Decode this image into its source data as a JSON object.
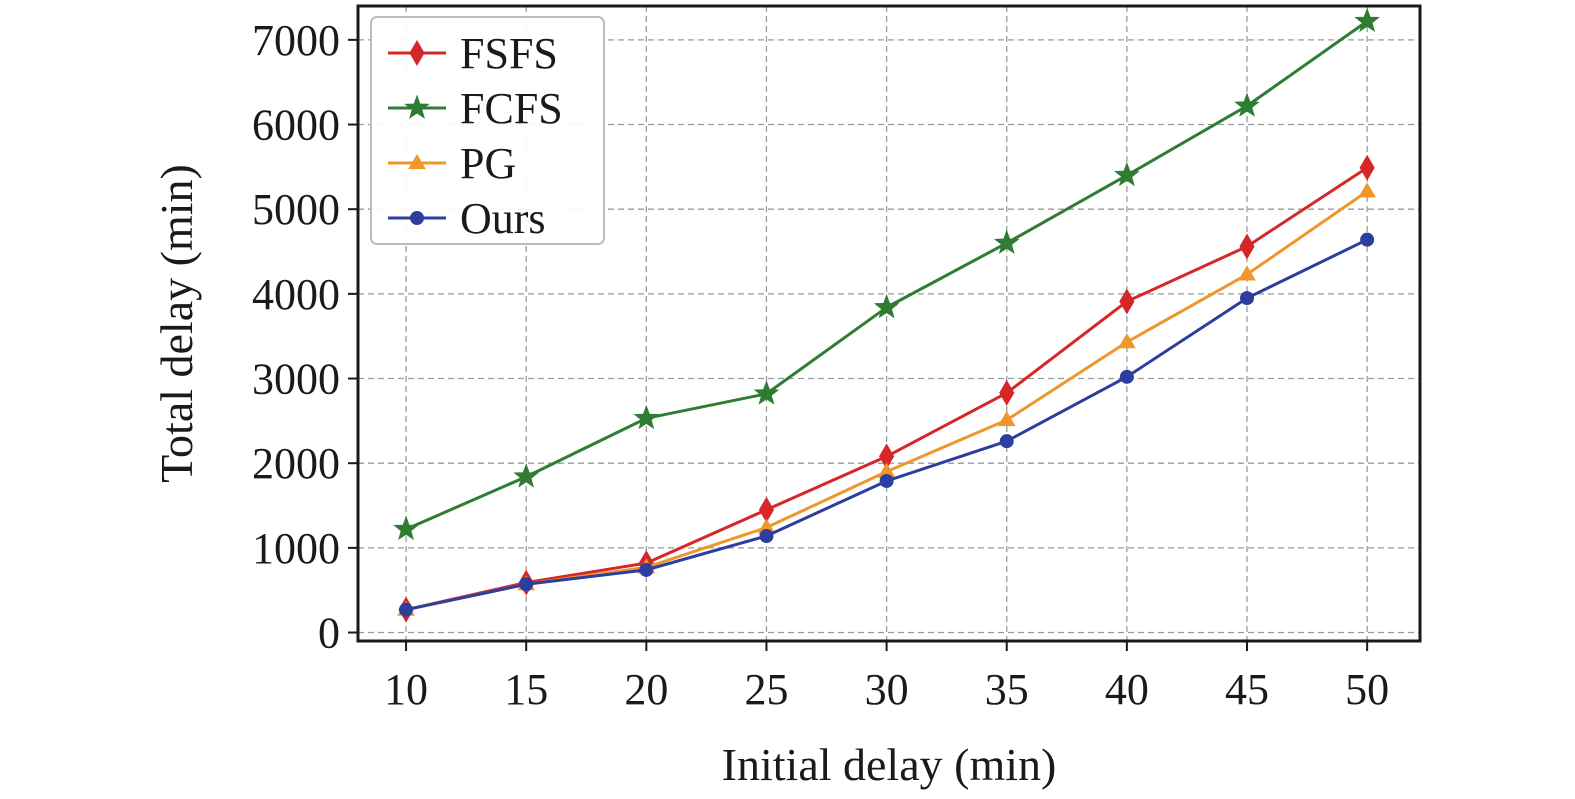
{
  "chart_data": {
    "type": "line",
    "title": "",
    "xlabel": "Initial delay (min)",
    "ylabel": "Total delay (min)",
    "x": [
      10,
      15,
      20,
      25,
      30,
      35,
      40,
      45,
      50
    ],
    "xlim": [
      8,
      52.2
    ],
    "ylim": [
      -100,
      7400
    ],
    "yticks": [
      0,
      1000,
      2000,
      3000,
      4000,
      5000,
      6000,
      7000
    ],
    "grid": true,
    "legend_position": "top-left",
    "series": [
      {
        "name": "FSFS",
        "color": "#d62728",
        "marker": "diamond",
        "values": [
          270,
          590,
          820,
          1450,
          2080,
          2830,
          3910,
          4560,
          5490
        ]
      },
      {
        "name": "FCFS",
        "color": "#2e7d32",
        "marker": "star",
        "values": [
          1220,
          1840,
          2530,
          2820,
          3840,
          4600,
          5400,
          6220,
          7220
        ]
      },
      {
        "name": "PG",
        "color": "#f0962b",
        "marker": "triangle",
        "values": [
          270,
          570,
          770,
          1240,
          1900,
          2510,
          3430,
          4230,
          5210
        ]
      },
      {
        "name": "Ours",
        "color": "#2c3e9e",
        "marker": "circle",
        "values": [
          270,
          570,
          740,
          1140,
          1790,
          2260,
          3020,
          3950,
          4640
        ]
      }
    ]
  }
}
